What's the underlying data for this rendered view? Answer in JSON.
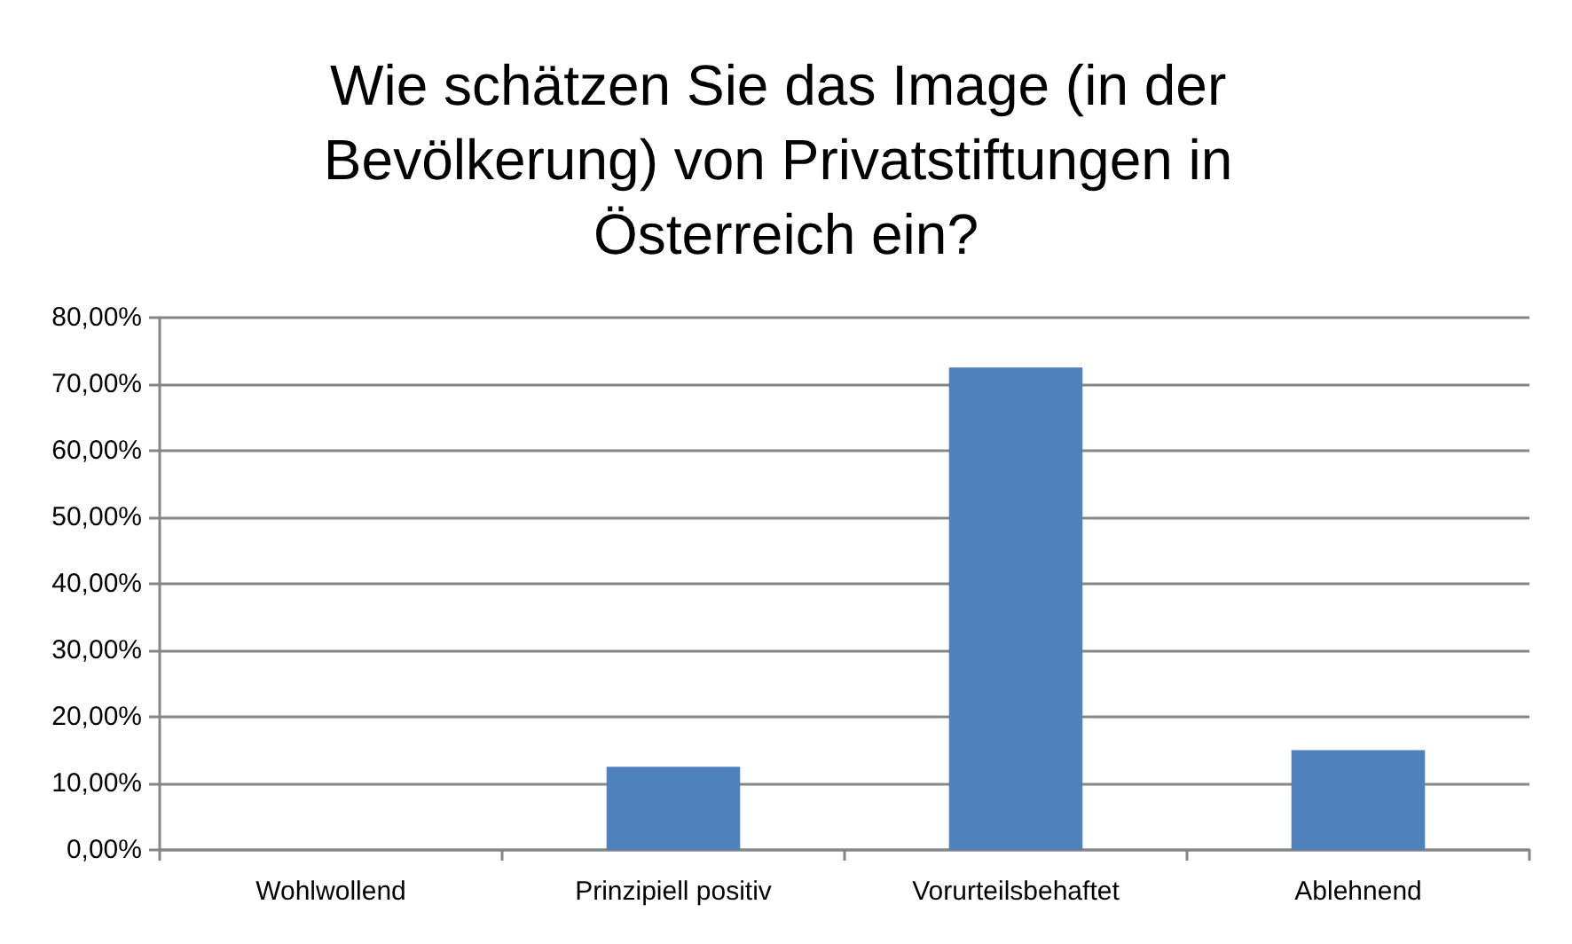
{
  "chart_data": {
    "type": "bar",
    "title": "Wie schätzen Sie das Image (in der Bevölkerung) von Privatstiftungen in Österreich ein?",
    "categories": [
      "Wohlwollend",
      "Prinzipiell positiv",
      "Vorurteilsbehaftet",
      "Ablehnend"
    ],
    "values": [
      0,
      12.5,
      72.5,
      15
    ],
    "color": "#4f81bd",
    "ylim": [
      0,
      80
    ],
    "yticks": [
      {
        "value": 0,
        "label": "0,00%"
      },
      {
        "value": 10,
        "label": "10,00%"
      },
      {
        "value": 20,
        "label": "20,00%"
      },
      {
        "value": 30,
        "label": "30,00%"
      },
      {
        "value": 40,
        "label": "40,00%"
      },
      {
        "value": 50,
        "label": "50,00%"
      },
      {
        "value": 60,
        "label": "60,00%"
      },
      {
        "value": 70,
        "label": "70,00%"
      },
      {
        "value": 80,
        "label": "80,00%"
      }
    ],
    "grid": "y"
  }
}
